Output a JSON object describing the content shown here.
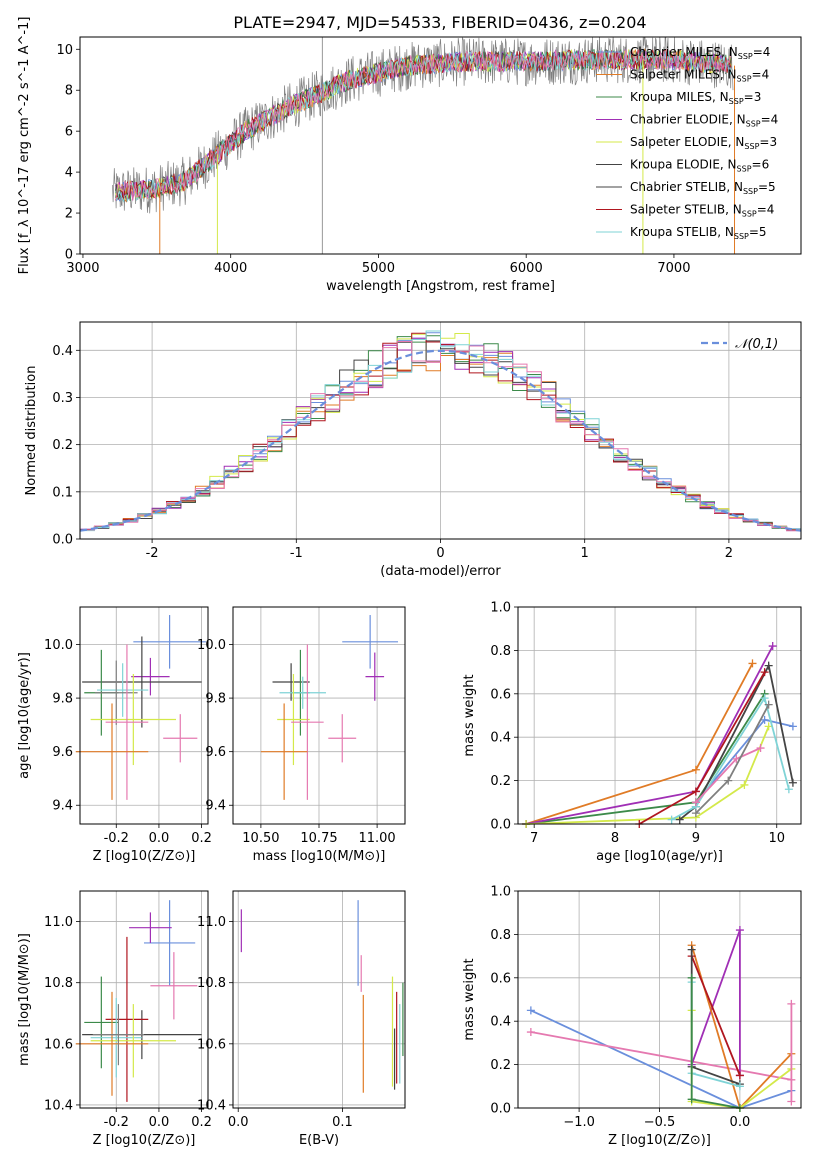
{
  "title": "PLATE=2947, MJD=54533, FIBERID=0436, z=0.204",
  "colors": {
    "series": [
      "#6a8fdc",
      "#e07b26",
      "#3c8a4a",
      "#a02fb5",
      "#d4e94a",
      "#444444",
      "#b0161f",
      "#7fd3d6",
      "#e579b0",
      "#7f7f7f"
    ]
  },
  "chart_data": [
    {
      "id": "spectrum",
      "type": "line",
      "xlabel": "wavelength [Angstrom, rest frame]",
      "ylabel": "Flux [f_λ 10^-17 erg cm^-2 s^-1 A^-1]",
      "xlim": [
        2980,
        7860
      ],
      "ylim": [
        0,
        10.6
      ],
      "xticks": [
        3000,
        4000,
        5000,
        6000,
        7000
      ],
      "yticks": [
        0,
        2,
        4,
        6,
        8,
        10
      ],
      "grid": false,
      "legend_position": "lower-right",
      "continuum_anchors": [
        [
          3200,
          3.0
        ],
        [
          3500,
          3.2
        ],
        [
          3700,
          3.6
        ],
        [
          3900,
          4.8
        ],
        [
          4100,
          6.0
        ],
        [
          4400,
          7.2
        ],
        [
          4800,
          8.5
        ],
        [
          5200,
          9.2
        ],
        [
          5600,
          9.4
        ],
        [
          6000,
          9.4
        ],
        [
          6500,
          9.5
        ],
        [
          7000,
          9.5
        ],
        [
          7400,
          9.2
        ]
      ],
      "data_start": 3200,
      "data_end": 7400,
      "spike_x": 4620,
      "series": [
        {
          "name": "Chabrier MILES",
          "nssp": 4
        },
        {
          "name": "Salpeter MILES",
          "nssp": 4
        },
        {
          "name": "Kroupa MILES",
          "nssp": 3
        },
        {
          "name": "Chabrier ELODIE",
          "nssp": 4
        },
        {
          "name": "Salpeter ELODIE",
          "nssp": 3
        },
        {
          "name": "Kroupa ELODIE",
          "nssp": 6
        },
        {
          "name": "Chabrier STELIB",
          "nssp": 5
        },
        {
          "name": "Salpeter STELIB",
          "nssp": 4
        },
        {
          "name": "Kroupa STELIB",
          "nssp": 5
        }
      ],
      "legend_suffix": "N_SSP"
    },
    {
      "id": "residuals",
      "type": "step-histogram",
      "xlabel": "(data-model)/error",
      "ylabel": "Normed distribution",
      "xlim": [
        -2.5,
        2.5
      ],
      "ylim": [
        0,
        0.46
      ],
      "xticks": [
        -2,
        -1,
        0,
        1,
        2
      ],
      "yticks": [
        0.0,
        0.1,
        0.2,
        0.3,
        0.4
      ],
      "grid": true,
      "legend": [
        {
          "name": "𝒩(0,1)",
          "style": "dashed",
          "color": "#6a8fdc"
        }
      ],
      "legend_position": "top-right",
      "bin_edges_start": -2.5,
      "bin_width": 0.1,
      "bin_count": 50,
      "num_series": 9
    },
    {
      "id": "age-vs-Z",
      "type": "errorbar",
      "xlabel": "Z [log10(Z/Z⊙)]",
      "ylabel": "age [log10(age/yr)]",
      "xlim": [
        -0.37,
        0.23
      ],
      "ylim": [
        9.33,
        10.14
      ],
      "xticks": [
        -0.2,
        0.0,
        0.2
      ],
      "yticks": [
        9.4,
        9.6,
        9.8,
        10.0
      ],
      "grid": true,
      "points": [
        {
          "x": 0.05,
          "y": 10.01,
          "xerr": 0.17,
          "yerr": 0.1,
          "c": 0
        },
        {
          "x": -0.04,
          "y": 9.88,
          "xerr": 0.09,
          "yerr": 0.07,
          "c": 3
        },
        {
          "x": -0.08,
          "y": 9.86,
          "xerr": 0.28,
          "yerr": 0.17,
          "c": 5
        },
        {
          "x": -0.27,
          "y": 9.82,
          "xerr": 0.08,
          "yerr": 0.16,
          "c": 2
        },
        {
          "x": -0.17,
          "y": 9.83,
          "xerr": 0.12,
          "yerr": 0.1,
          "c": 7
        },
        {
          "x": -0.2,
          "y": 9.82,
          "xerr": 0.1,
          "yerr": 0.12,
          "c": 9
        },
        {
          "x": -0.12,
          "y": 9.72,
          "xerr": 0.2,
          "yerr": 0.17,
          "c": 4
        },
        {
          "x": -0.15,
          "y": 9.71,
          "xerr": 0.1,
          "yerr": 0.29,
          "c": 8
        },
        {
          "x": -0.22,
          "y": 9.6,
          "xerr": 0.17,
          "yerr": 0.18,
          "c": 1
        },
        {
          "x": 0.1,
          "y": 9.65,
          "xerr": 0.08,
          "yerr": 0.09,
          "c": 8
        }
      ]
    },
    {
      "id": "age-vs-mass",
      "type": "errorbar",
      "xlabel": "mass [log10(M/M⊙)]",
      "ylabel": "",
      "xlim": [
        10.38,
        11.12
      ],
      "ylim": [
        9.33,
        10.14
      ],
      "xticks": [
        10.5,
        10.75,
        11.0
      ],
      "yticks": [
        9.4,
        9.6,
        9.8,
        10.0
      ],
      "grid": true,
      "points": [
        {
          "x": 10.97,
          "y": 10.01,
          "xerr": 0.12,
          "yerr": 0.1,
          "c": 0
        },
        {
          "x": 10.99,
          "y": 9.88,
          "xerr": 0.04,
          "yerr": 0.09,
          "c": 3
        },
        {
          "x": 10.63,
          "y": 9.86,
          "xerr": 0.08,
          "yerr": 0.07,
          "c": 5
        },
        {
          "x": 10.67,
          "y": 9.82,
          "xerr": 0.04,
          "yerr": 0.16,
          "c": 2
        },
        {
          "x": 10.68,
          "y": 9.82,
          "xerr": 0.1,
          "yerr": 0.06,
          "c": 7
        },
        {
          "x": 10.64,
          "y": 9.72,
          "xerr": 0.07,
          "yerr": 0.17,
          "c": 4
        },
        {
          "x": 10.7,
          "y": 9.71,
          "xerr": 0.07,
          "yerr": 0.29,
          "c": 8
        },
        {
          "x": 10.6,
          "y": 9.6,
          "xerr": 0.1,
          "yerr": 0.18,
          "c": 1
        },
        {
          "x": 10.85,
          "y": 9.65,
          "xerr": 0.06,
          "yerr": 0.09,
          "c": 8
        }
      ]
    },
    {
      "id": "massweight-vs-age",
      "type": "line",
      "xlabel": "age [log10(age/yr)]",
      "ylabel": "mass weight",
      "xlim": [
        6.8,
        10.3
      ],
      "ylim": [
        0,
        1.0
      ],
      "xticks": [
        7,
        8,
        9,
        10
      ],
      "yticks": [
        0.0,
        0.2,
        0.4,
        0.6,
        0.8,
        1.0
      ],
      "grid": true,
      "series": [
        {
          "c": 0,
          "x": [
            9.0,
            9.85,
            10.2
          ],
          "y": [
            0.1,
            0.48,
            0.45
          ]
        },
        {
          "c": 1,
          "x": [
            6.9,
            9.0,
            9.7
          ],
          "y": [
            0.0,
            0.25,
            0.74
          ]
        },
        {
          "c": 2,
          "x": [
            6.9,
            9.0,
            9.85
          ],
          "y": [
            0.0,
            0.1,
            0.6
          ]
        },
        {
          "c": 3,
          "x": [
            6.9,
            9.0,
            9.95
          ],
          "y": [
            0.0,
            0.15,
            0.82
          ]
        },
        {
          "c": 4,
          "x": [
            6.9,
            9.0,
            9.6,
            9.9
          ],
          "y": [
            0.0,
            0.03,
            0.18,
            0.45
          ]
        },
        {
          "c": 5,
          "x": [
            8.8,
            9.0,
            9.9,
            10.2
          ],
          "y": [
            0.02,
            0.08,
            0.73,
            0.19
          ]
        },
        {
          "c": 6,
          "x": [
            8.3,
            9.0,
            9.85
          ],
          "y": [
            0.0,
            0.15,
            0.7
          ]
        },
        {
          "c": 7,
          "x": [
            8.7,
            9.0,
            9.85,
            10.15
          ],
          "y": [
            0.02,
            0.08,
            0.58,
            0.16
          ]
        },
        {
          "c": 8,
          "x": [
            9.0,
            9.5,
            9.8
          ],
          "y": [
            0.1,
            0.3,
            0.35
          ]
        },
        {
          "c": 9,
          "x": [
            9.0,
            9.4,
            9.9
          ],
          "y": [
            0.05,
            0.2,
            0.55
          ]
        }
      ]
    },
    {
      "id": "mass-vs-Z",
      "type": "errorbar",
      "xlabel": "Z [log10(Z/Z⊙)]",
      "ylabel": "mass [log10(M/M⊙)]",
      "xlim": [
        -0.37,
        0.23
      ],
      "ylim": [
        10.39,
        11.1
      ],
      "xticks": [
        -0.2,
        0.0,
        0.2
      ],
      "yticks": [
        10.4,
        10.6,
        10.8,
        11.0
      ],
      "grid": true,
      "points": [
        {
          "x": 0.05,
          "y": 10.93,
          "xerr": 0.12,
          "yerr": 0.14,
          "c": 0
        },
        {
          "x": -0.04,
          "y": 10.98,
          "xerr": 0.1,
          "yerr": 0.05,
          "c": 3
        },
        {
          "x": 0.07,
          "y": 10.79,
          "xerr": 0.11,
          "yerr": 0.11,
          "c": 8
        },
        {
          "x": -0.27,
          "y": 10.67,
          "xerr": 0.08,
          "yerr": 0.15,
          "c": 2
        },
        {
          "x": -0.08,
          "y": 10.63,
          "xerr": 0.28,
          "yerr": 0.08,
          "c": 5
        },
        {
          "x": -0.15,
          "y": 10.68,
          "xerr": 0.1,
          "yerr": 0.27,
          "c": 6
        },
        {
          "x": -0.2,
          "y": 10.62,
          "xerr": 0.12,
          "yerr": 0.13,
          "c": 7
        },
        {
          "x": -0.12,
          "y": 10.61,
          "xerr": 0.2,
          "yerr": 0.12,
          "c": 4
        },
        {
          "x": -0.22,
          "y": 10.6,
          "xerr": 0.17,
          "yerr": 0.17,
          "c": 1
        },
        {
          "x": -0.19,
          "y": 10.63,
          "xerr": 0.12,
          "yerr": 0.1,
          "c": 9
        }
      ]
    },
    {
      "id": "mass-vs-EBV",
      "type": "errorbar",
      "xlabel": "E(B-V)",
      "ylabel": "",
      "xlim": [
        -0.005,
        0.16
      ],
      "ylim": [
        10.39,
        11.1
      ],
      "xticks": [
        0.0,
        0.1
      ],
      "yticks": [
        10.4,
        10.6,
        10.8,
        11.0
      ],
      "grid": true,
      "points": [
        {
          "x": 0.003,
          "y": 10.97,
          "xerr": 0,
          "yerr": 0.07,
          "c": 3
        },
        {
          "x": 0.115,
          "y": 10.93,
          "xerr": 0,
          "yerr": 0.14,
          "c": 0
        },
        {
          "x": 0.118,
          "y": 10.83,
          "xerr": 0,
          "yerr": 0.06,
          "c": 8
        },
        {
          "x": 0.12,
          "y": 10.6,
          "xerr": 0,
          "yerr": 0.16,
          "c": 1
        },
        {
          "x": 0.148,
          "y": 10.64,
          "xerr": 0,
          "yerr": 0.18,
          "c": 4
        },
        {
          "x": 0.15,
          "y": 10.55,
          "xerr": 0,
          "yerr": 0.1,
          "c": 5
        },
        {
          "x": 0.152,
          "y": 10.62,
          "xerr": 0,
          "yerr": 0.15,
          "c": 6
        },
        {
          "x": 0.155,
          "y": 10.6,
          "xerr": 0,
          "yerr": 0.13,
          "c": 7
        },
        {
          "x": 0.158,
          "y": 10.68,
          "xerr": 0,
          "yerr": 0.12,
          "c": 2
        }
      ]
    },
    {
      "id": "massweight-vs-Z",
      "type": "line",
      "xlabel": "Z [log10(Z/Z⊙)]",
      "ylabel": "mass weight",
      "xlim": [
        -1.38,
        0.38
      ],
      "ylim": [
        0,
        1.0
      ],
      "xticks": [
        -1.0,
        -0.5,
        0.0
      ],
      "yticks": [
        0.0,
        0.2,
        0.4,
        0.6,
        0.8,
        1.0
      ],
      "grid": true,
      "series": [
        {
          "c": 0,
          "x": [
            -1.3,
            0.0,
            0.32
          ],
          "y": [
            0.45,
            0.0,
            0.08
          ]
        },
        {
          "c": 8,
          "x": [
            -1.3,
            0.32
          ],
          "y": [
            0.35,
            0.13
          ]
        },
        {
          "c": 3,
          "x": [
            -0.3,
            0.0,
            0.0
          ],
          "y": [
            0.2,
            0.82,
            0.15
          ]
        },
        {
          "c": 1,
          "x": [
            -0.3,
            0.0,
            0.32
          ],
          "y": [
            0.75,
            0.0,
            0.25
          ]
        },
        {
          "c": 6,
          "x": [
            -0.3,
            0.0
          ],
          "y": [
            0.7,
            0.15
          ]
        },
        {
          "c": 5,
          "x": [
            -0.3,
            -0.3,
            0.0
          ],
          "y": [
            0.73,
            0.19,
            0.11
          ]
        },
        {
          "c": 7,
          "x": [
            -0.3,
            -0.3,
            0.0
          ],
          "y": [
            0.58,
            0.16,
            0.1
          ]
        },
        {
          "c": 4,
          "x": [
            -0.3,
            -0.3,
            0.0,
            0.32
          ],
          "y": [
            0.45,
            0.03,
            0.0,
            0.18
          ]
        },
        {
          "c": 2,
          "x": [
            -0.3,
            -0.3,
            0.0
          ],
          "y": [
            0.6,
            0.04,
            0.0
          ]
        },
        {
          "c": 8,
          "x": [
            0.32,
            0.32
          ],
          "y": [
            0.48,
            0.03
          ]
        }
      ]
    }
  ]
}
